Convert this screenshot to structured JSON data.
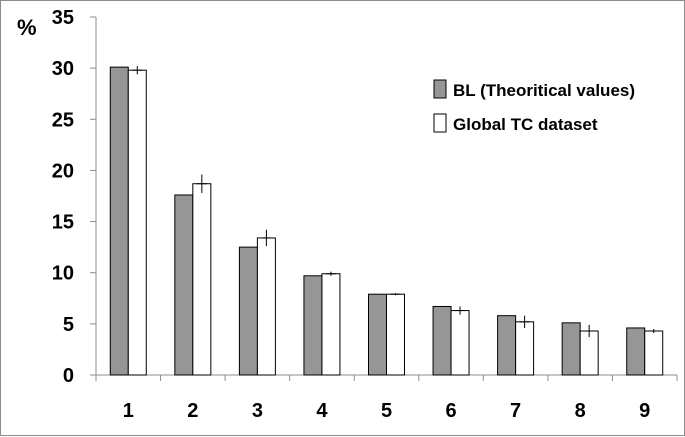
{
  "chart_data": {
    "type": "bar",
    "ylabel": "%",
    "ylim": [
      0,
      35
    ],
    "yticks": [
      0,
      5,
      10,
      15,
      20,
      25,
      30,
      35
    ],
    "categories": [
      "1",
      "2",
      "3",
      "4",
      "5",
      "6",
      "7",
      "8",
      "9"
    ],
    "legend_position": "top-right",
    "grid": false,
    "series": [
      {
        "name": "BL (Theoritical values)",
        "color": "#969696",
        "values": [
          30.1,
          17.6,
          12.5,
          9.7,
          7.9,
          6.7,
          5.8,
          5.1,
          4.6
        ]
      },
      {
        "name": "Global TC dataset",
        "color": "#ffffff",
        "values": [
          29.8,
          18.7,
          13.4,
          9.9,
          7.9,
          6.3,
          5.2,
          4.3,
          4.3
        ],
        "error": [
          0.4,
          0.9,
          0.8,
          0.2,
          0.1,
          0.4,
          0.6,
          0.6,
          0.2
        ]
      }
    ]
  }
}
